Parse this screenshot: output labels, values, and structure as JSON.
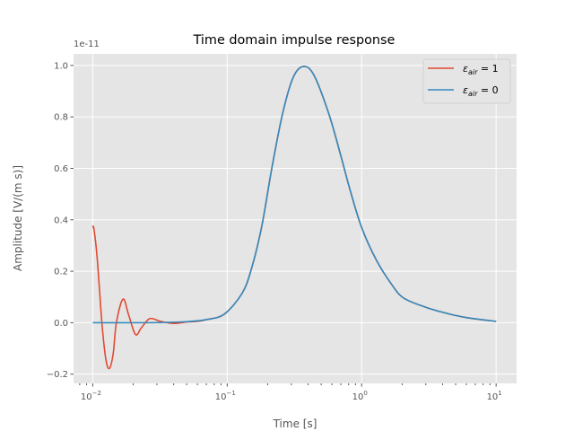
{
  "chart_data": {
    "type": "line",
    "title": "Time domain impulse response",
    "xlabel": "Time [s]",
    "ylabel": "Amplitude [V/(m s)]",
    "offset_text": "1e-11",
    "xscale": "log",
    "xlim": [
      0.0072,
      14.2
    ],
    "ylim": [
      -0.236,
      1.045
    ],
    "xticks": [
      0.01,
      0.1,
      1,
      10
    ],
    "xtick_labels": [
      [
        "10",
        "−2"
      ],
      [
        "10",
        "−1"
      ],
      [
        "10",
        "0"
      ],
      [
        "10",
        "1"
      ]
    ],
    "yticks": [
      -0.2,
      0.0,
      0.2,
      0.4,
      0.6,
      0.8,
      1.0
    ],
    "ytick_labels": [
      "−0.2",
      "0.0",
      "0.2",
      "0.4",
      "0.6",
      "0.8",
      "1.0"
    ],
    "grid": true,
    "legend_placement": "top-right",
    "series": [
      {
        "name": "ε_air = 1",
        "legend_main": "ε",
        "legend_sub": "air",
        "legend_rest": " = 1",
        "color": "#E24A33",
        "x": [
          0.01,
          0.0102,
          0.0108,
          0.0117,
          0.0125,
          0.0133,
          0.0142,
          0.015,
          0.0168,
          0.0185,
          0.0208,
          0.023,
          0.0266,
          0.032,
          0.04,
          0.05,
          0.06,
          0.07,
          0.095,
          0.129,
          0.151,
          0.18,
          0.215,
          0.258,
          0.308,
          0.366,
          0.441,
          0.57,
          0.7,
          0.815,
          1.0,
          1.29,
          1.67,
          2.05,
          3.0,
          4.4,
          6.0,
          10.0
        ],
        "y": [
          0.369,
          0.366,
          0.25,
          0.0,
          -0.14,
          -0.178,
          -0.12,
          0.0,
          0.092,
          0.03,
          -0.046,
          -0.02,
          0.016,
          0.005,
          -0.003,
          0.003,
          0.005,
          0.012,
          0.033,
          0.114,
          0.207,
          0.37,
          0.602,
          0.812,
          0.951,
          0.996,
          0.963,
          0.812,
          0.649,
          0.521,
          0.37,
          0.242,
          0.149,
          0.096,
          0.06,
          0.035,
          0.02,
          0.005
        ]
      },
      {
        "name": "ε_air = 0",
        "legend_main": "ε",
        "legend_sub": "air",
        "legend_rest": " = 0",
        "color": "#348ABD",
        "x": [
          0.01,
          0.02,
          0.03,
          0.05,
          0.07,
          0.095,
          0.129,
          0.151,
          0.18,
          0.215,
          0.258,
          0.308,
          0.366,
          0.441,
          0.57,
          0.7,
          0.815,
          1.0,
          1.29,
          1.67,
          2.05,
          3.0,
          4.4,
          6.0,
          10.0
        ],
        "y": [
          0.0,
          0.0,
          0.0005,
          0.004,
          0.012,
          0.033,
          0.114,
          0.207,
          0.37,
          0.602,
          0.812,
          0.951,
          0.996,
          0.963,
          0.812,
          0.649,
          0.521,
          0.37,
          0.242,
          0.149,
          0.096,
          0.06,
          0.035,
          0.02,
          0.005
        ]
      }
    ]
  }
}
